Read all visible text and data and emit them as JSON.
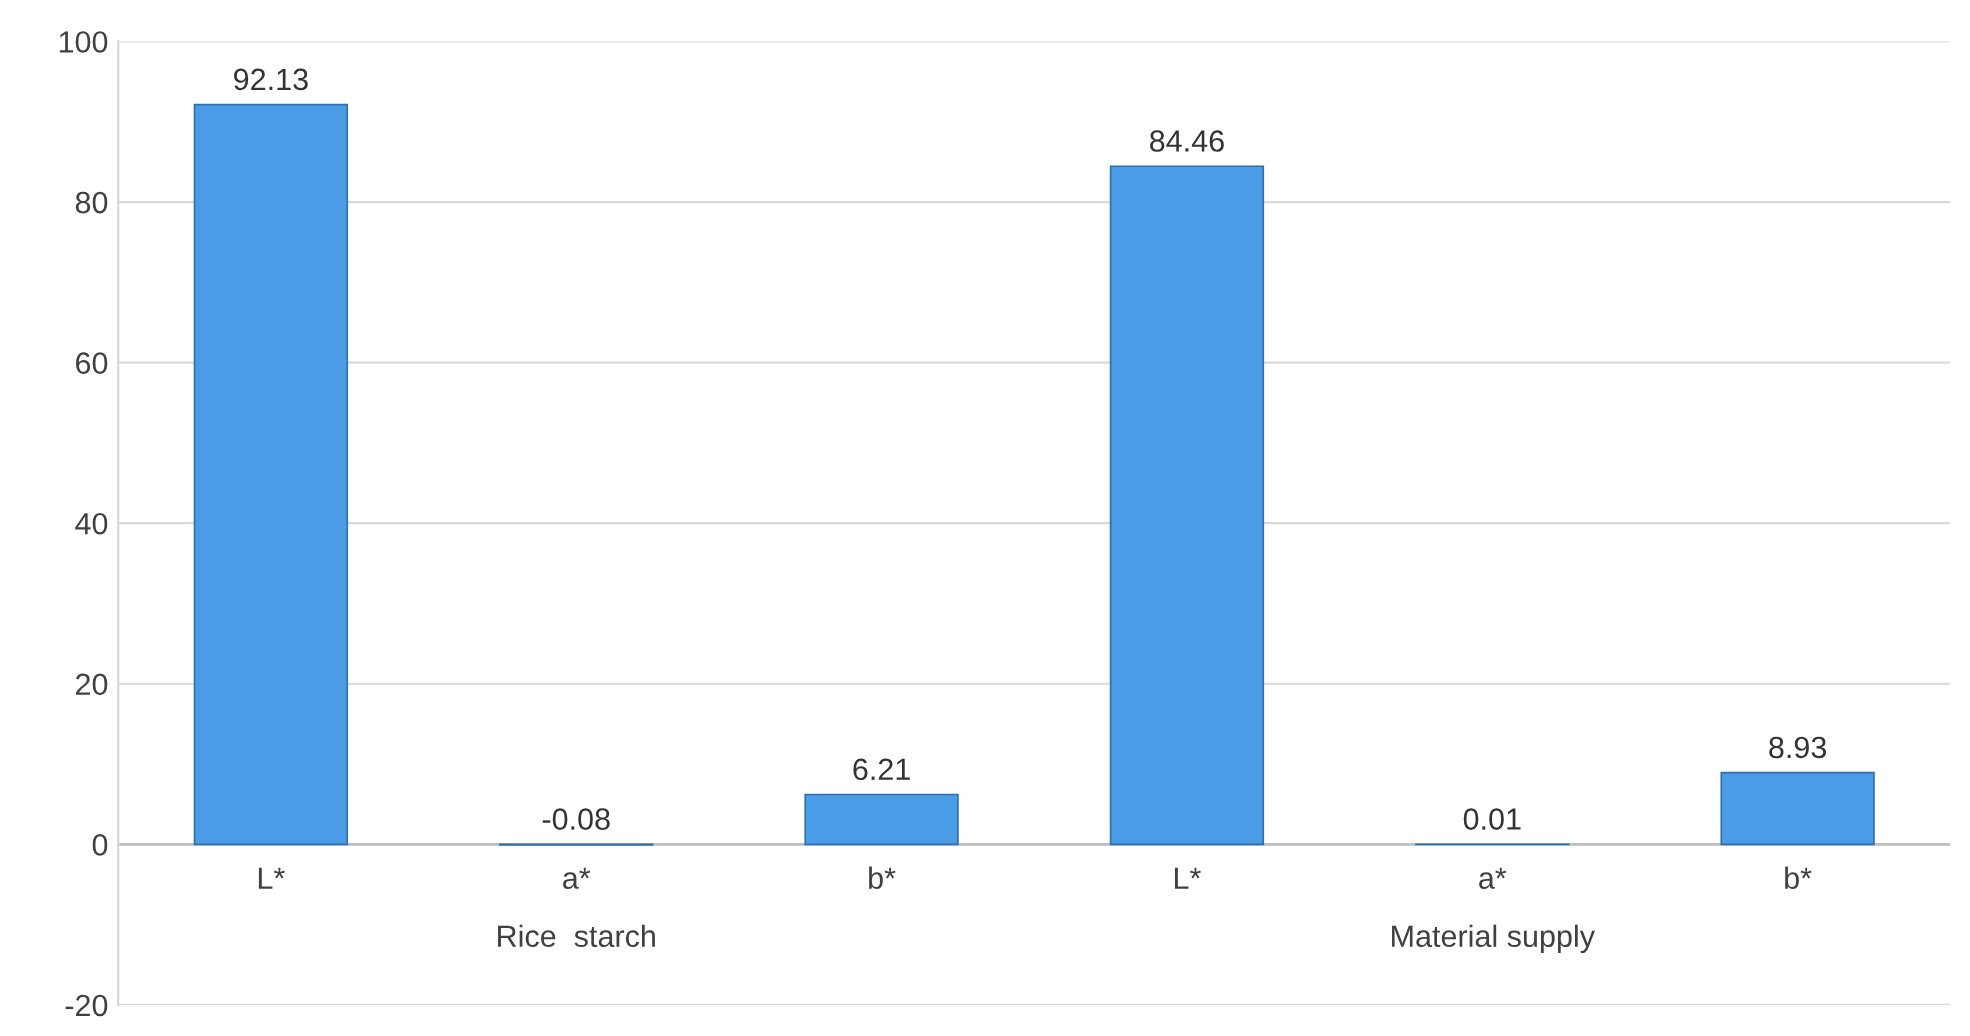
{
  "chart_data": {
    "type": "bar",
    "categories": [
      "L*",
      "a*",
      "b*",
      "L*",
      "a*",
      "b*"
    ],
    "values": [
      92.13,
      -0.08,
      6.21,
      84.46,
      0.01,
      8.93
    ],
    "color": "#4a9ce6",
    "ylim": [
      -20,
      100
    ],
    "yticks": [
      -20,
      0,
      20,
      40,
      60,
      80,
      100
    ],
    "grid": "y",
    "data_labels": true,
    "annotations": [
      "Rice  starch",
      "Material supply"
    ]
  }
}
